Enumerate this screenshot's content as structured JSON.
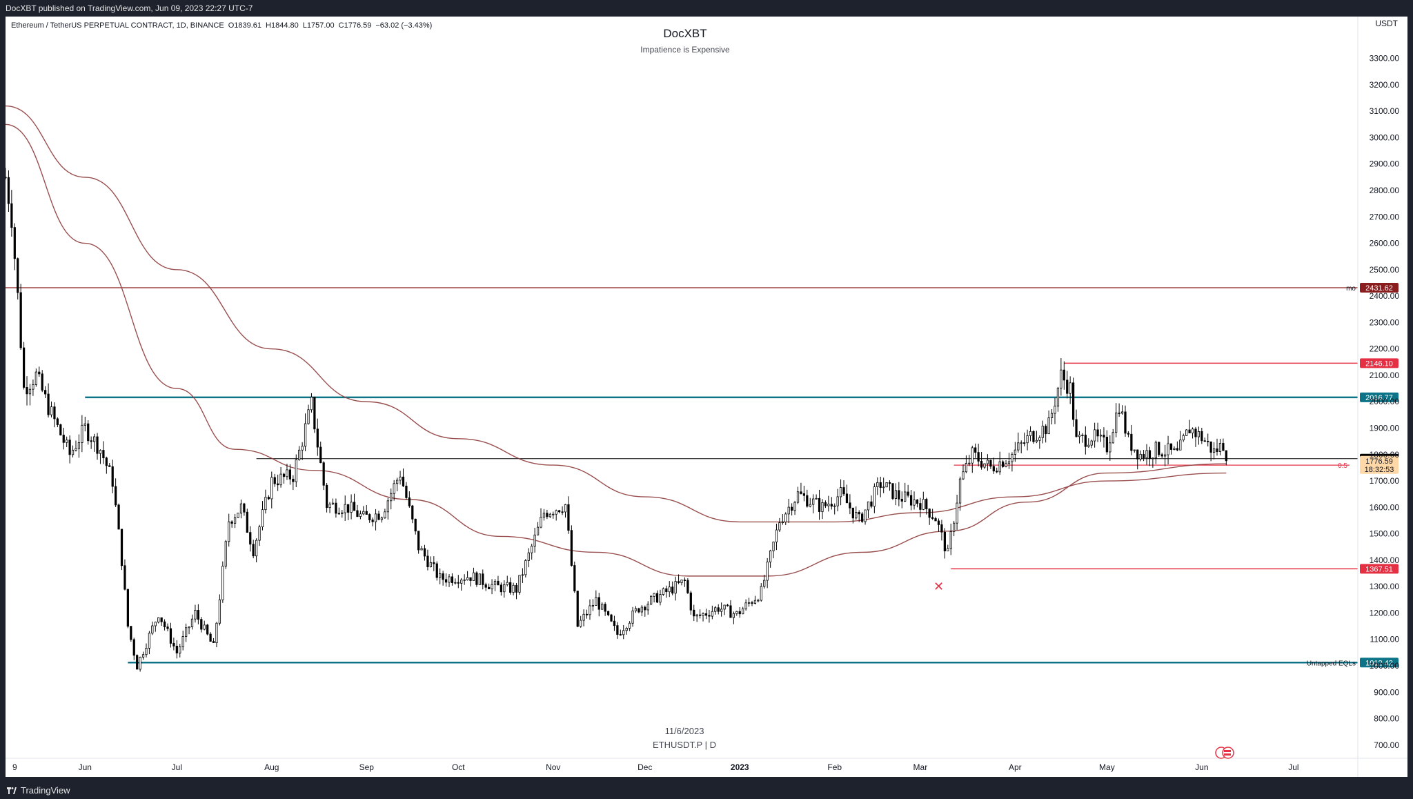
{
  "header": {
    "publish_line": "DocXBT published on TradingView.com, Jun 09, 2023 22:27 UTC-7"
  },
  "footer": {
    "brand": "TradingView"
  },
  "chart_data": {
    "type": "candlestick",
    "symbol_line": "Ethereum / TetherUS PERPETUAL CONTRACT, 1D, BINANCE",
    "ohlc": {
      "open": "O1839.61",
      "high": "H1844.80",
      "low": "L1757.00",
      "close": "C1776.59",
      "change": "−63.02 (−3.43%)"
    },
    "title": "DocXBT",
    "subtitle": "Impatience is Expensive",
    "watermark_date": "11/6/2023",
    "watermark_symbol": "ETHUSDT.P | D",
    "currency": "USDT",
    "ylim": [
      650,
      3380
    ],
    "y_ticks": [
      "3300.00",
      "3200.00",
      "3100.00",
      "3000.00",
      "2900.00",
      "2800.00",
      "2700.00",
      "2600.00",
      "2500.00",
      "2400.00",
      "2300.00",
      "2200.00",
      "2100.00",
      "2000.00",
      "1900.00",
      "1800.00",
      "1700.00",
      "1600.00",
      "1500.00",
      "1400.00",
      "1300.00",
      "1200.00",
      "1100.00",
      "1000.00",
      "900.00",
      "800.00",
      "700.00"
    ],
    "x_ticks": [
      {
        "label": "9",
        "date": "2022-05-09",
        "bold": false
      },
      {
        "label": "Jun",
        "date": "2022-06-01",
        "bold": false
      },
      {
        "label": "Jul",
        "date": "2022-07-01",
        "bold": false
      },
      {
        "label": "Aug",
        "date": "2022-08-01",
        "bold": false
      },
      {
        "label": "Sep",
        "date": "2022-09-01",
        "bold": false
      },
      {
        "label": "Oct",
        "date": "2022-10-01",
        "bold": false
      },
      {
        "label": "Nov",
        "date": "2022-11-01",
        "bold": false
      },
      {
        "label": "Dec",
        "date": "2022-12-01",
        "bold": false
      },
      {
        "label": "2023",
        "date": "2023-01-01",
        "bold": true
      },
      {
        "label": "Feb",
        "date": "2023-02-01",
        "bold": false
      },
      {
        "label": "Mar",
        "date": "2023-03-01",
        "bold": false
      },
      {
        "label": "Apr",
        "date": "2023-04-01",
        "bold": false
      },
      {
        "label": "May",
        "date": "2023-05-01",
        "bold": false
      },
      {
        "label": "Jun",
        "date": "2023-06-01",
        "bold": false
      },
      {
        "label": "Jul",
        "date": "2023-07-01",
        "bold": false
      }
    ],
    "x_range": [
      "2022-05-06",
      "2023-07-22"
    ],
    "price_path": [
      [
        "2022-05-06",
        2850
      ],
      [
        "2022-05-08",
        2700
      ],
      [
        "2022-05-10",
        2400
      ],
      [
        "2022-05-12",
        2050
      ],
      [
        "2022-05-16",
        2100
      ],
      [
        "2022-05-20",
        1980
      ],
      [
        "2022-05-27",
        1800
      ],
      [
        "2022-06-01",
        1900
      ],
      [
        "2022-06-06",
        1820
      ],
      [
        "2022-06-10",
        1700
      ],
      [
        "2022-06-13",
        1400
      ],
      [
        "2022-06-15",
        1150
      ],
      [
        "2022-06-18",
        1000
      ],
      [
        "2022-06-25",
        1200
      ],
      [
        "2022-07-01",
        1050
      ],
      [
        "2022-07-07",
        1200
      ],
      [
        "2022-07-13",
        1070
      ],
      [
        "2022-07-18",
        1550
      ],
      [
        "2022-07-22",
        1600
      ],
      [
        "2022-07-26",
        1440
      ],
      [
        "2022-08-01",
        1700
      ],
      [
        "2022-08-08",
        1720
      ],
      [
        "2022-08-14",
        1990
      ],
      [
        "2022-08-19",
        1610
      ],
      [
        "2022-08-26",
        1600
      ],
      [
        "2022-08-31",
        1560
      ],
      [
        "2022-09-06",
        1580
      ],
      [
        "2022-09-12",
        1730
      ],
      [
        "2022-09-18",
        1450
      ],
      [
        "2022-09-25",
        1330
      ],
      [
        "2022-10-05",
        1340
      ],
      [
        "2022-10-13",
        1300
      ],
      [
        "2022-10-20",
        1290
      ],
      [
        "2022-10-25",
        1450
      ],
      [
        "2022-10-29",
        1580
      ],
      [
        "2022-11-05",
        1610
      ],
      [
        "2022-11-09",
        1150
      ],
      [
        "2022-11-15",
        1250
      ],
      [
        "2022-11-22",
        1120
      ],
      [
        "2022-11-29",
        1220
      ],
      [
        "2022-12-05",
        1260
      ],
      [
        "2022-12-14",
        1320
      ],
      [
        "2022-12-17",
        1180
      ],
      [
        "2022-12-25",
        1220
      ],
      [
        "2022-12-31",
        1195
      ],
      [
        "2023-01-08",
        1280
      ],
      [
        "2023-01-14",
        1550
      ],
      [
        "2023-01-20",
        1650
      ],
      [
        "2023-01-28",
        1600
      ],
      [
        "2023-02-03",
        1650
      ],
      [
        "2023-02-09",
        1550
      ],
      [
        "2023-02-16",
        1690
      ],
      [
        "2023-02-22",
        1640
      ],
      [
        "2023-03-01",
        1620
      ],
      [
        "2023-03-06",
        1560
      ],
      [
        "2023-03-10",
        1420
      ],
      [
        "2023-03-14",
        1700
      ],
      [
        "2023-03-18",
        1800
      ],
      [
        "2023-03-24",
        1750
      ],
      [
        "2023-03-31",
        1800
      ],
      [
        "2023-04-06",
        1870
      ],
      [
        "2023-04-12",
        1910
      ],
      [
        "2023-04-16",
        2100
      ],
      [
        "2023-04-19",
        2050
      ],
      [
        "2023-04-21",
        1850
      ],
      [
        "2023-04-26",
        1870
      ],
      [
        "2023-05-01",
        1830
      ],
      [
        "2023-05-05",
        1990
      ],
      [
        "2023-05-08",
        1850
      ],
      [
        "2023-05-12",
        1800
      ],
      [
        "2023-05-18",
        1820
      ],
      [
        "2023-05-24",
        1800
      ],
      [
        "2023-05-28",
        1900
      ],
      [
        "2023-06-01",
        1865
      ],
      [
        "2023-06-05",
        1810
      ],
      [
        "2023-06-08",
        1840
      ],
      [
        "2023-06-09",
        1777
      ]
    ],
    "moving_averages": [
      {
        "name": "fast",
        "color": "#8e3b3b",
        "points": [
          [
            "2022-05-06",
            3050
          ],
          [
            "2022-06-01",
            2600
          ],
          [
            "2022-07-01",
            2050
          ],
          [
            "2022-07-20",
            1820
          ],
          [
            "2022-08-15",
            1740
          ],
          [
            "2022-09-15",
            1630
          ],
          [
            "2022-10-15",
            1490
          ],
          [
            "2022-11-15",
            1430
          ],
          [
            "2022-12-15",
            1340
          ],
          [
            "2023-01-10",
            1340
          ],
          [
            "2023-02-10",
            1430
          ],
          [
            "2023-03-10",
            1510
          ],
          [
            "2023-04-05",
            1620
          ],
          [
            "2023-05-01",
            1730
          ],
          [
            "2023-06-09",
            1765
          ]
        ]
      },
      {
        "name": "slow",
        "color": "#8e3b3b",
        "points": [
          [
            "2022-05-06",
            3120
          ],
          [
            "2022-06-01",
            2850
          ],
          [
            "2022-07-01",
            2500
          ],
          [
            "2022-08-01",
            2200
          ],
          [
            "2022-09-01",
            2000
          ],
          [
            "2022-10-01",
            1860
          ],
          [
            "2022-11-01",
            1760
          ],
          [
            "2022-12-01",
            1640
          ],
          [
            "2023-01-01",
            1545
          ],
          [
            "2023-02-01",
            1545
          ],
          [
            "2023-03-01",
            1580
          ],
          [
            "2023-04-01",
            1640
          ],
          [
            "2023-05-01",
            1700
          ],
          [
            "2023-06-09",
            1730
          ]
        ]
      }
    ],
    "levels": [
      {
        "price": 2431.62,
        "label": "2431.62",
        "tag": "mo",
        "color": "#8a1d1d",
        "from": "2022-05-06",
        "width": 1.2
      },
      {
        "price": 2146.1,
        "label": "2146.10",
        "tag": "",
        "color": "#e53044",
        "from": "2023-04-17",
        "width": 1.5
      },
      {
        "price": 2016.77,
        "label": "2016.77",
        "tag": "",
        "color": "#0d7488",
        "from": "2022-06-01",
        "width": 2.5
      },
      {
        "price": 1784.5,
        "label": "1784.50",
        "tag": "",
        "color": "#000000",
        "from": "2022-07-27",
        "width": 1
      },
      {
        "price": 1760,
        "label": "",
        "tag": "0.5",
        "color": "#e53044",
        "from": "2023-03-12",
        "width": 1.3
      },
      {
        "price": 1367.51,
        "label": "1367.51",
        "tag": "",
        "color": "#e53044",
        "from": "2023-03-11",
        "width": 1.5
      },
      {
        "price": 1012.42,
        "label": "1012.42",
        "tag": "Untapped EQLs",
        "color": "#0d7488",
        "from": "2022-06-15",
        "width": 2.5
      }
    ],
    "last_price": {
      "label": "1776.59",
      "countdown": "18:32:53",
      "price": 1776.59
    },
    "marker": {
      "symbol": "✕",
      "date": "2023-03-07",
      "price": 1300
    }
  }
}
